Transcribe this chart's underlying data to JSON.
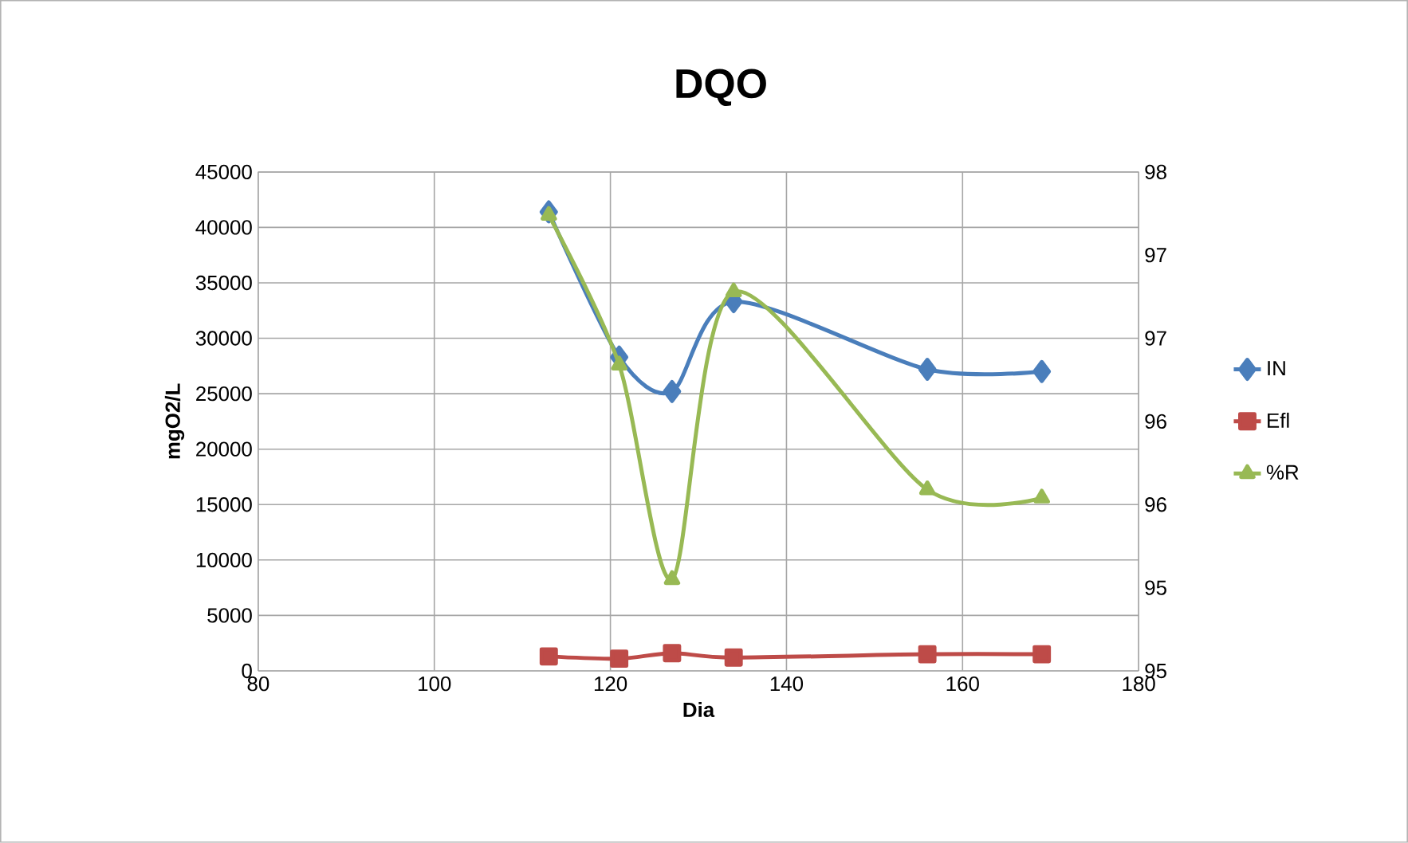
{
  "chart_data": {
    "type": "line",
    "title": "DQO",
    "xlabel": "Dia",
    "ylabel": "mgO2/L",
    "xlim": [
      80,
      180
    ],
    "xticks": [
      80,
      100,
      120,
      140,
      160,
      180
    ],
    "ylim": [
      0,
      45000
    ],
    "yticks": [
      0,
      5000,
      10000,
      15000,
      20000,
      25000,
      30000,
      35000,
      40000,
      45000
    ],
    "y2lim": [
      95,
      98
    ],
    "y2ticks": [
      {
        "value": 95,
        "label": "95"
      },
      {
        "value": 95.5,
        "label": "95"
      },
      {
        "value": 96,
        "label": "96"
      },
      {
        "value": 96.5,
        "label": "96"
      },
      {
        "value": 97,
        "label": "97"
      },
      {
        "value": 97.5,
        "label": "97"
      },
      {
        "value": 98,
        "label": "98"
      }
    ],
    "grid": true,
    "legend": "right",
    "line_style": "solid",
    "series": [
      {
        "name": "IN",
        "color": "#4a7ebb",
        "marker": "diamond",
        "x": [
          113,
          121,
          127,
          134,
          156,
          169
        ],
        "values": [
          41400,
          28300,
          25200,
          33300,
          27200,
          27000
        ]
      },
      {
        "name": "Efl",
        "color": "#be4b48",
        "marker": "square",
        "x": [
          113,
          121,
          127,
          134,
          156,
          169
        ],
        "values": [
          1300,
          1100,
          1600,
          1200,
          1500,
          1500
        ]
      },
      {
        "name": "%R",
        "color": "#98b954",
        "marker": "triangle",
        "axis": "y2",
        "x": [
          113,
          121,
          127,
          134,
          156,
          169
        ],
        "values": [
          97.74,
          96.84,
          95.55,
          97.28,
          96.09,
          96.04
        ]
      }
    ]
  }
}
